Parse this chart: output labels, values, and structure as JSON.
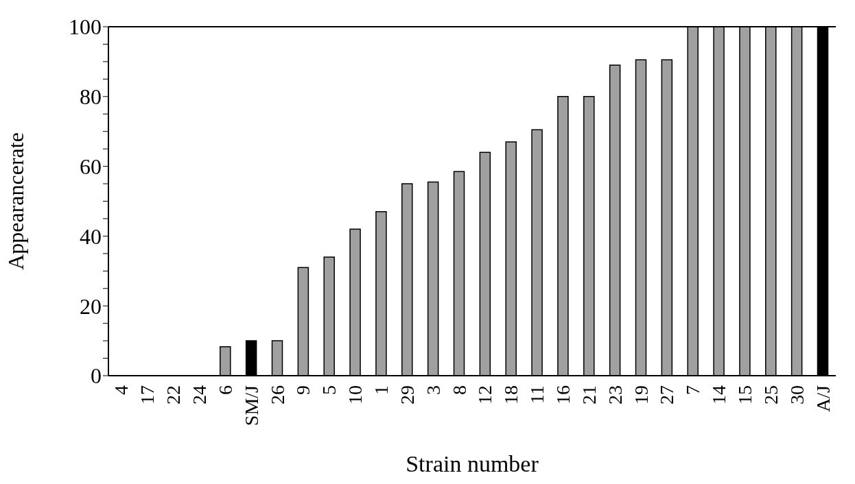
{
  "chart_data": {
    "type": "bar",
    "xlabel": "Strain number",
    "ylabel": "Appearancerate",
    "categories": [
      "4",
      "17",
      "22",
      "24",
      "6",
      "SM/J",
      "26",
      "9",
      "5",
      "10",
      "1",
      "29",
      "3",
      "8",
      "12",
      "18",
      "11",
      "16",
      "21",
      "23",
      "19",
      "27",
      "7",
      "14",
      "15",
      "25",
      "30",
      "A/J"
    ],
    "values": [
      0,
      0,
      0,
      0,
      8.3,
      10,
      10,
      31,
      34,
      42,
      47,
      55,
      55.5,
      58.5,
      64,
      67,
      70.5,
      80,
      80,
      89,
      90.5,
      90.5,
      100,
      100,
      100,
      100,
      100,
      100
    ],
    "colors": [
      "#a0a0a0",
      "#a0a0a0",
      "#a0a0a0",
      "#a0a0a0",
      "#a0a0a0",
      "#000000",
      "#a0a0a0",
      "#a0a0a0",
      "#a0a0a0",
      "#a0a0a0",
      "#a0a0a0",
      "#a0a0a0",
      "#a0a0a0",
      "#a0a0a0",
      "#a0a0a0",
      "#a0a0a0",
      "#a0a0a0",
      "#a0a0a0",
      "#a0a0a0",
      "#a0a0a0",
      "#a0a0a0",
      "#a0a0a0",
      "#a0a0a0",
      "#a0a0a0",
      "#a0a0a0",
      "#a0a0a0",
      "#a0a0a0",
      "#000000"
    ],
    "ylim": [
      0,
      100
    ],
    "yticks": [
      0,
      {
        "value": 5,
        "label": null
      },
      {
        "value": 10,
        "label": null
      },
      {
        "value": 15,
        "label": null
      },
      20,
      {
        "value": 25,
        "label": null
      },
      {
        "value": 30,
        "label": null
      },
      {
        "value": 35,
        "label": null
      },
      40,
      {
        "value": 45,
        "label": null
      },
      {
        "value": 50,
        "label": null
      },
      {
        "value": 55,
        "label": null
      },
      60,
      {
        "value": 65,
        "label": null
      },
      {
        "value": 70,
        "label": null
      },
      {
        "value": 75,
        "label": null
      },
      80,
      {
        "value": 85,
        "label": null
      },
      {
        "value": 90,
        "label": null
      },
      {
        "value": 95,
        "label": null
      },
      100
    ],
    "grid": false,
    "legend": false
  }
}
